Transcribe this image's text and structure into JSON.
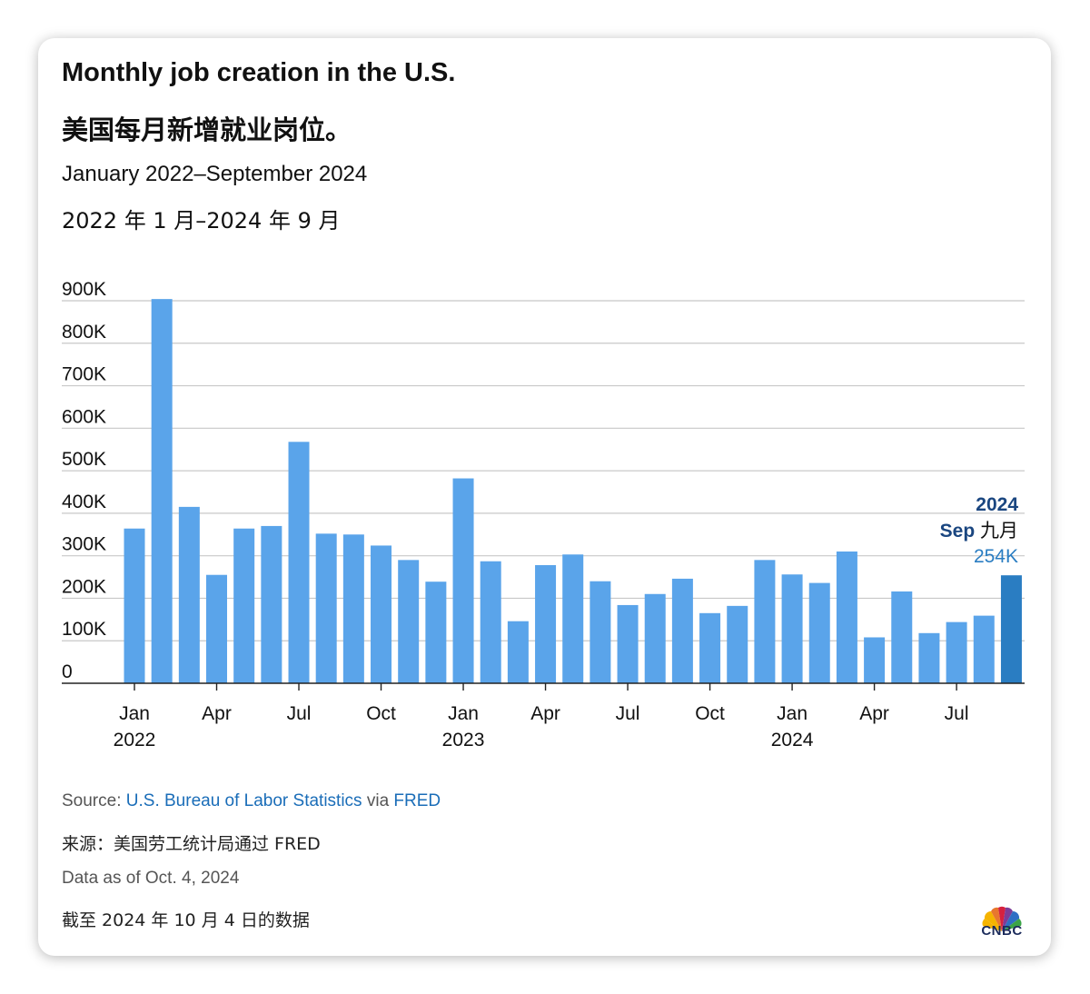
{
  "title": "Monthly job creation in the U.S.",
  "title_cn": "美国每月新增就业岗位。",
  "subtitle": "January 2022–September 2024",
  "subtitle_cn": "2022 年 1 月–2024 年 9 月",
  "source": {
    "prefix": "Source: ",
    "link1": "U.S. Bureau of Labor Statistics",
    "middle": " via ",
    "link2": "FRED"
  },
  "source_cn": "来源：美国劳工统计局通过 FRED",
  "as_of": "Data as of Oct. 4, 2024",
  "as_of_cn": "截至 2024 年 10 月 4 日的数据",
  "logo_text": "CNBC",
  "colors": {
    "bar": "#5aa4ea",
    "highlight_bar": "#2a7dc2",
    "annotation": "#1a4680",
    "grid": "#c8c8c8"
  },
  "chart_data": {
    "type": "bar",
    "title": "Monthly job creation in the U.S.",
    "ylim": [
      0,
      950000
    ],
    "y_ticks": [
      {
        "value": 0,
        "label": "0"
      },
      {
        "value": 100000,
        "label": "100K"
      },
      {
        "value": 200000,
        "label": "200K"
      },
      {
        "value": 300000,
        "label": "300K"
      },
      {
        "value": 400000,
        "label": "400K"
      },
      {
        "value": 500000,
        "label": "500K"
      },
      {
        "value": 600000,
        "label": "600K"
      },
      {
        "value": 700000,
        "label": "700K"
      },
      {
        "value": 800000,
        "label": "800K"
      },
      {
        "value": 900000,
        "label": "900K"
      }
    ],
    "categories": [
      "2022-01",
      "2022-02",
      "2022-03",
      "2022-04",
      "2022-05",
      "2022-06",
      "2022-07",
      "2022-08",
      "2022-09",
      "2022-10",
      "2022-11",
      "2022-12",
      "2023-01",
      "2023-02",
      "2023-03",
      "2023-04",
      "2023-05",
      "2023-06",
      "2023-07",
      "2023-08",
      "2023-09",
      "2023-10",
      "2023-11",
      "2023-12",
      "2024-01",
      "2024-02",
      "2024-03",
      "2024-04",
      "2024-05",
      "2024-06",
      "2024-07",
      "2024-08",
      "2024-09"
    ],
    "values": [
      364000,
      904000,
      415000,
      255000,
      364000,
      370000,
      568000,
      352000,
      350000,
      324000,
      290000,
      239000,
      482000,
      287000,
      146000,
      278000,
      303000,
      240000,
      184000,
      210000,
      246000,
      165000,
      182000,
      290000,
      256000,
      236000,
      310000,
      108000,
      216000,
      118000,
      144000,
      159000,
      254000
    ],
    "x_ticks": [
      {
        "index": 0,
        "month": "Jan",
        "year": "2022"
      },
      {
        "index": 3,
        "month": "Apr",
        "year": ""
      },
      {
        "index": 6,
        "month": "Jul",
        "year": ""
      },
      {
        "index": 9,
        "month": "Oct",
        "year": ""
      },
      {
        "index": 12,
        "month": "Jan",
        "year": "2023"
      },
      {
        "index": 15,
        "month": "Apr",
        "year": ""
      },
      {
        "index": 18,
        "month": "Jul",
        "year": ""
      },
      {
        "index": 21,
        "month": "Oct",
        "year": ""
      },
      {
        "index": 24,
        "month": "Jan",
        "year": "2024"
      },
      {
        "index": 27,
        "month": "Apr",
        "year": ""
      },
      {
        "index": 30,
        "month": "Jul",
        "year": ""
      }
    ],
    "highlight_index": 32,
    "annotation": {
      "year": "2024",
      "month": "Sep",
      "month_cn": "九月",
      "value_label": "254K"
    }
  }
}
